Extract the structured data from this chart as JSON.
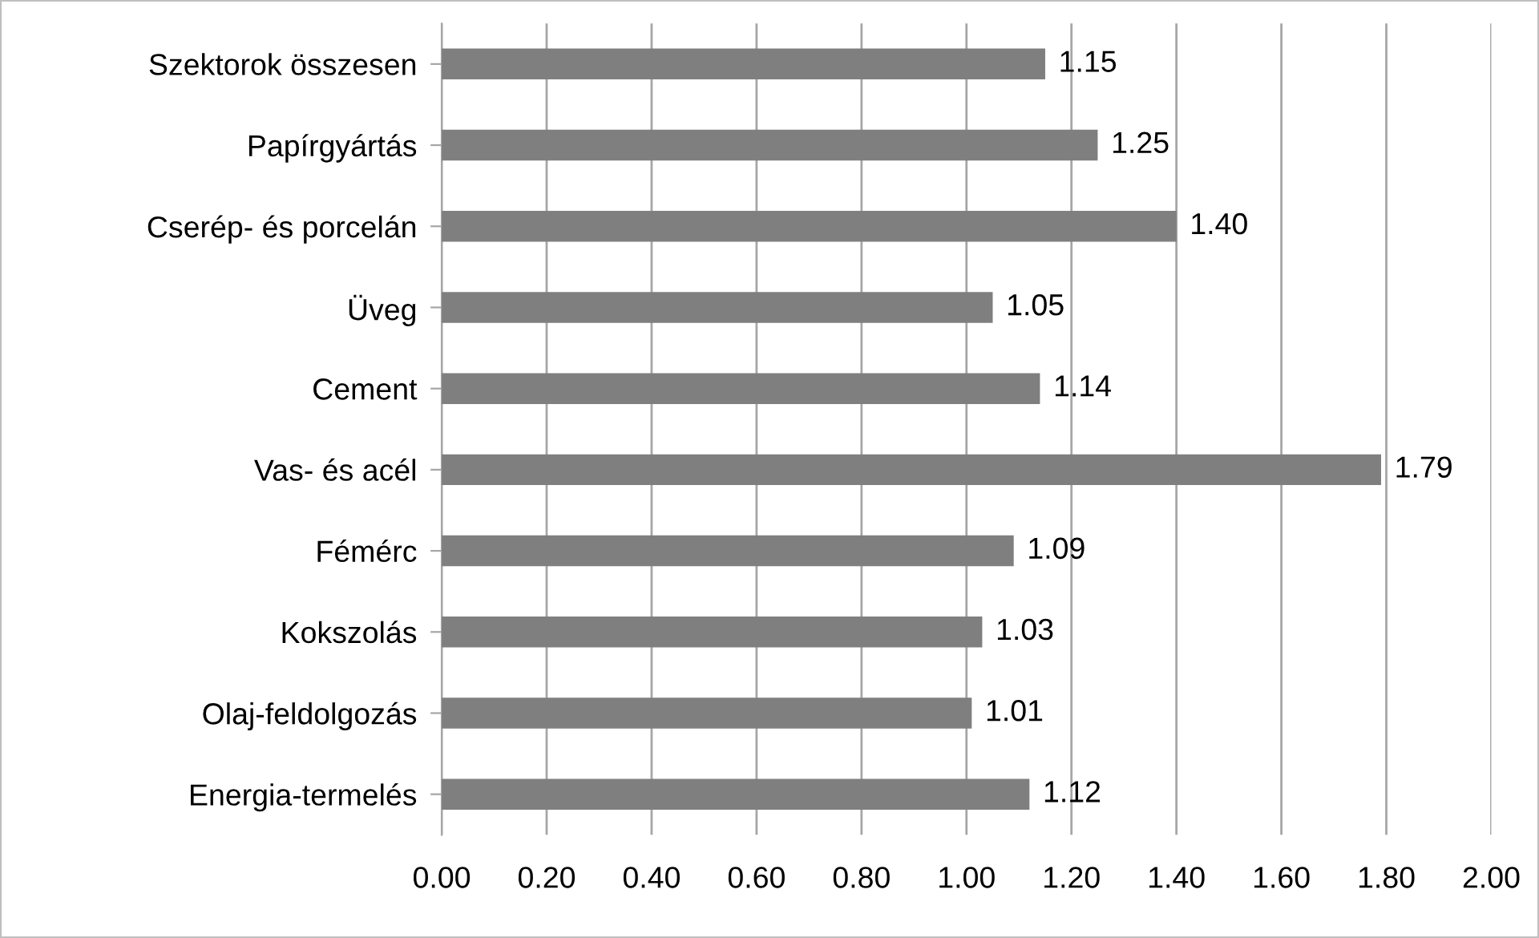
{
  "chart_data": {
    "type": "bar",
    "orientation": "horizontal",
    "categories": [
      "Szektorok összesen",
      "Papírgyártás",
      "Cserép- és porcelán",
      "Üveg",
      "Cement",
      "Vas- és acél",
      "Fémérc",
      "Kokszolás",
      "Olaj-feldolgozás",
      "Energia-termelés"
    ],
    "values": [
      1.15,
      1.25,
      1.4,
      1.05,
      1.14,
      1.79,
      1.09,
      1.03,
      1.01,
      1.12
    ],
    "value_labels": [
      "1.15",
      "1.25",
      "1.40",
      "1.05",
      "1.14",
      "1.79",
      "1.09",
      "1.03",
      "1.01",
      "1.12"
    ],
    "color": "#7f7f7f",
    "xlim": [
      0,
      2
    ],
    "xticks": [
      {
        "value": 0,
        "label": "0.00"
      },
      {
        "value": 0.2,
        "label": "0.20"
      },
      {
        "value": 0.4,
        "label": "0.40"
      },
      {
        "value": 0.6,
        "label": "0.60"
      },
      {
        "value": 0.8,
        "label": "0.80"
      },
      {
        "value": 1.0,
        "label": "1.00"
      },
      {
        "value": 1.2,
        "label": "1.20"
      },
      {
        "value": 1.4,
        "label": "1.40"
      },
      {
        "value": 1.6,
        "label": "1.60"
      },
      {
        "value": 1.8,
        "label": "1.80"
      },
      {
        "value": 2.0,
        "label": "2.00"
      }
    ],
    "grid": "x",
    "legend": false
  }
}
